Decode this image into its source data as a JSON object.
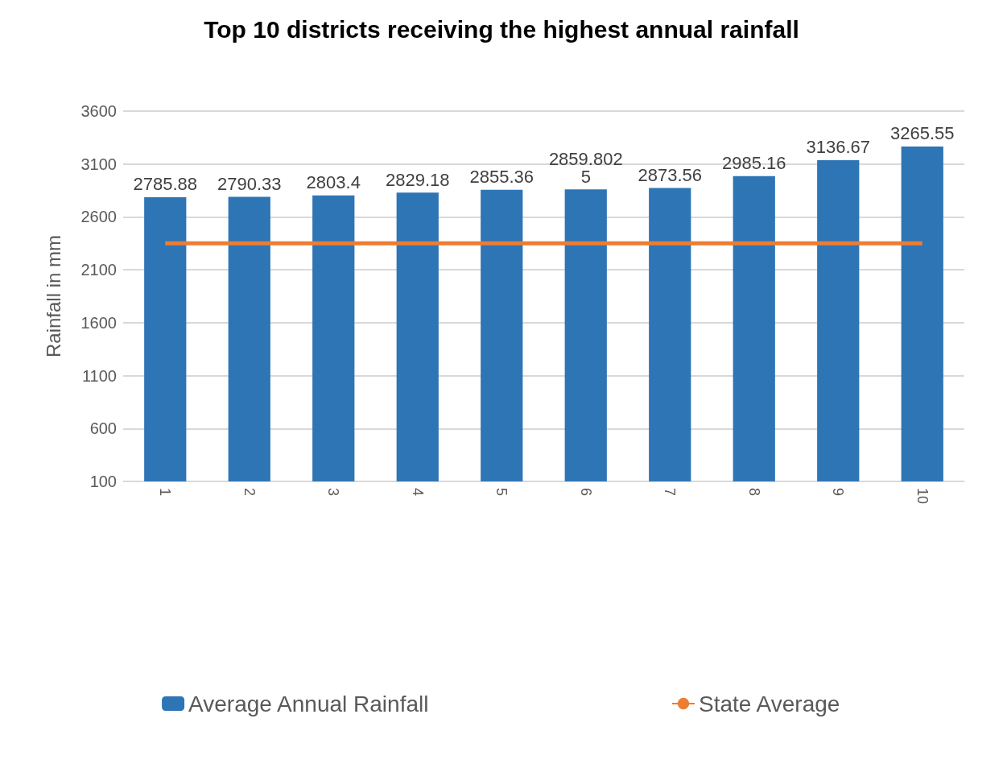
{
  "chart_data": {
    "type": "bar",
    "title": "Top 10 districts receiving the highest annual rainfall",
    "ylabel": "Rainfall in mm",
    "categories": [
      "1",
      "2",
      "3",
      "4",
      "5",
      "6",
      "7",
      "8",
      "9",
      "10"
    ],
    "series": [
      {
        "name": "Average Annual Rainfall",
        "color": "#2e75b6",
        "values": [
          2785.88,
          2790.33,
          2803.4,
          2829.18,
          2855.36,
          2859.8025,
          2873.56,
          2985.16,
          3136.67,
          3265.55
        ],
        "data_labels": true
      },
      {
        "name": "State Average",
        "type": "line",
        "color": "#ed7d31",
        "values": [
          2350,
          2350,
          2350,
          2350,
          2350,
          2350,
          2350,
          2350,
          2350,
          2350
        ],
        "marker": "none"
      }
    ],
    "ylim": [
      100,
      3600
    ],
    "yticks": [
      100,
      600,
      1100,
      1600,
      2100,
      2600,
      3100,
      3600
    ],
    "grid": "y",
    "legend": "bottom"
  }
}
